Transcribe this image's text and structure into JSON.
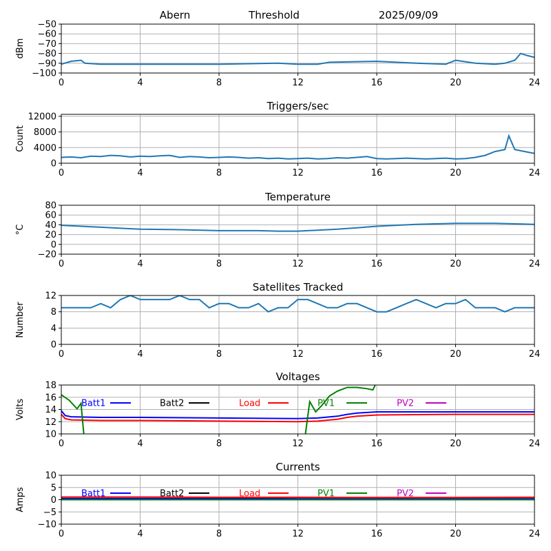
{
  "header": {
    "site": "Abern",
    "mode": "Threshold",
    "date": "2025/09/09"
  },
  "colors": {
    "default": "#1f77b4",
    "grid": "#b0b0b0",
    "batt1": "#0000ff",
    "batt2": "#000000",
    "load": "#ff0000",
    "pv1": "#008000",
    "pv2": "#bf00bf"
  },
  "x_ticks": [
    "0",
    "4",
    "8",
    "12",
    "16",
    "20",
    "24"
  ],
  "chart_data": [
    {
      "id": "signal",
      "type": "line",
      "title": "",
      "xlabel": "",
      "ylabel": "dBm",
      "xlim": [
        0,
        24
      ],
      "ylim": [
        -100,
        -50
      ],
      "grid": true,
      "yticks": [
        -100,
        -90,
        -80,
        -70,
        -60,
        -50
      ],
      "series": [
        {
          "x": [
            0,
            0.5,
            1,
            1.2,
            2,
            4,
            8,
            11,
            12,
            13,
            13.6,
            16,
            18,
            19.5,
            20,
            21,
            22,
            22.5,
            23,
            23.3,
            23.6,
            24
          ],
          "y": [
            -91,
            -88,
            -87,
            -90,
            -91,
            -91,
            -91,
            -90,
            -91,
            -91,
            -89,
            -88,
            -90,
            -91,
            -87,
            -90,
            -91,
            -90,
            -87,
            -80,
            -82,
            -84
          ]
        }
      ]
    },
    {
      "id": "triggers",
      "type": "line",
      "title": "Triggers/sec",
      "xlabel": "",
      "ylabel": "Count",
      "xlim": [
        0,
        24
      ],
      "ylim": [
        0,
        12500
      ],
      "grid": true,
      "yticks": [
        0,
        4000,
        8000,
        12000
      ],
      "series": [
        {
          "x": [
            0,
            0.5,
            1,
            1.5,
            2,
            2.5,
            3,
            3.5,
            4,
            4.5,
            5,
            5.5,
            6,
            6.5,
            7,
            7.5,
            8,
            8.5,
            9,
            9.5,
            10,
            10.5,
            11,
            11.5,
            12,
            12.5,
            13,
            13.5,
            14,
            14.5,
            15,
            15.5,
            16,
            16.5,
            17,
            17.5,
            18,
            18.5,
            19,
            19.5,
            20,
            20.5,
            21,
            21.5,
            22,
            22.5,
            22.7,
            23,
            23.5,
            24
          ],
          "y": [
            1500,
            1600,
            1400,
            1800,
            1700,
            2000,
            1900,
            1600,
            1800,
            1700,
            1900,
            2000,
            1500,
            1700,
            1600,
            1400,
            1500,
            1600,
            1500,
            1300,
            1400,
            1200,
            1300,
            1100,
            1200,
            1300,
            1100,
            1200,
            1400,
            1300,
            1500,
            1700,
            1200,
            1100,
            1200,
            1300,
            1200,
            1100,
            1200,
            1300,
            1100,
            1200,
            1500,
            2000,
            3000,
            3500,
            7000,
            3500,
            3000,
            2500
          ]
        }
      ]
    },
    {
      "id": "temperature",
      "type": "line",
      "title": "Temperature",
      "xlabel": "",
      "ylabel": "°C",
      "xlim": [
        0,
        24
      ],
      "ylim": [
        -20,
        80
      ],
      "grid": true,
      "yticks": [
        -20,
        0,
        20,
        40,
        60,
        80
      ],
      "series": [
        {
          "x": [
            0,
            1,
            2,
            3,
            4,
            6,
            8,
            10,
            11,
            12,
            12.5,
            13,
            14,
            15,
            16,
            17,
            18,
            19,
            20,
            21,
            22,
            23,
            24
          ],
          "y": [
            39,
            37,
            35,
            33,
            31,
            30,
            28,
            28,
            27,
            27,
            28,
            29,
            31,
            34,
            37,
            39,
            41,
            42,
            43,
            43,
            43,
            42,
            41
          ]
        }
      ]
    },
    {
      "id": "satellites",
      "type": "line",
      "title": "Satellites Tracked",
      "xlabel": "",
      "ylabel": "Number",
      "xlim": [
        0,
        24
      ],
      "ylim": [
        0,
        12
      ],
      "grid": true,
      "yticks": [
        0,
        4,
        8,
        12
      ],
      "series": [
        {
          "x": [
            0,
            0.5,
            1,
            1.5,
            2,
            2.5,
            3,
            3.5,
            4,
            4.5,
            5,
            5.5,
            6,
            6.5,
            7,
            7.5,
            8,
            8.5,
            9,
            9.5,
            10,
            10.5,
            11,
            11.5,
            12,
            12.5,
            13,
            13.5,
            14,
            14.5,
            15,
            15.5,
            16,
            16.5,
            17,
            17.5,
            18,
            18.5,
            19,
            19.5,
            20,
            20.5,
            21,
            21.5,
            22,
            22.5,
            23,
            23.5,
            24
          ],
          "y": [
            9,
            9,
            9,
            9,
            10,
            9,
            11,
            12,
            11,
            11,
            11,
            11,
            12,
            11,
            11,
            9,
            10,
            10,
            9,
            9,
            10,
            8,
            9,
            9,
            11,
            11,
            10,
            9,
            9,
            10,
            10,
            9,
            8,
            8,
            9,
            10,
            11,
            10,
            9,
            10,
            10,
            11,
            9,
            9,
            9,
            8,
            9,
            9,
            9
          ]
        }
      ]
    },
    {
      "id": "voltages",
      "type": "line",
      "title": "Voltages",
      "xlabel": "",
      "ylabel": "Volts",
      "xlim": [
        0,
        24
      ],
      "ylim": [
        10,
        18
      ],
      "grid": true,
      "yticks": [
        10,
        12,
        14,
        16,
        18
      ],
      "legend": "top, single row",
      "series": [
        {
          "name": "Batt1",
          "color": "batt1",
          "x": [
            0,
            0.2,
            0.5,
            2,
            4,
            8,
            12,
            13,
            14,
            14.5,
            15,
            16,
            20,
            24
          ],
          "y": [
            13.8,
            13,
            12.8,
            12.7,
            12.7,
            12.6,
            12.5,
            12.6,
            12.9,
            13.2,
            13.4,
            13.6,
            13.6,
            13.6
          ]
        },
        {
          "name": "Batt2",
          "color": "batt2",
          "x": [],
          "y": []
        },
        {
          "name": "Load",
          "color": "load",
          "x": [
            0,
            0.2,
            0.5,
            2,
            4,
            8,
            12,
            13,
            14,
            14.5,
            15,
            16,
            20,
            24
          ],
          "y": [
            13.2,
            12.5,
            12.3,
            12.2,
            12.2,
            12.1,
            12,
            12.1,
            12.4,
            12.7,
            12.9,
            13.1,
            13.2,
            13.2
          ]
        },
        {
          "name": "PV1",
          "color": "pv1",
          "x": [
            0,
            0.4,
            0.8,
            1,
            1.2,
            12.3,
            12.6,
            12.9,
            13.2,
            13.6,
            14,
            14.5,
            15,
            15.5,
            15.8,
            16
          ],
          "y": [
            16.4,
            15.5,
            14.1,
            15,
            8,
            8,
            15.3,
            13.6,
            14.6,
            16.2,
            17,
            17.6,
            17.6,
            17.4,
            17.2,
            18.5
          ]
        },
        {
          "name": "PV2",
          "color": "pv2",
          "x": [],
          "y": []
        }
      ]
    },
    {
      "id": "currents",
      "type": "line",
      "title": "Currents",
      "xlabel": "",
      "ylabel": "Amps",
      "xlim": [
        0,
        24
      ],
      "ylim": [
        -10,
        10
      ],
      "grid": true,
      "yticks": [
        -10,
        -5,
        0,
        5,
        10
      ],
      "legend": "top, single row",
      "series": [
        {
          "name": "Batt1",
          "color": "batt1",
          "x": [
            0,
            4,
            8,
            12,
            16,
            20,
            24
          ],
          "y": [
            0.5,
            0.5,
            0.5,
            0.4,
            0.4,
            0.4,
            0.4
          ]
        },
        {
          "name": "Batt2",
          "color": "batt2",
          "x": [],
          "y": []
        },
        {
          "name": "Load",
          "color": "load",
          "x": [
            0,
            4,
            8,
            12,
            16,
            20,
            24
          ],
          "y": [
            1.1,
            1.1,
            1,
            1,
            0.9,
            0.9,
            1
          ]
        },
        {
          "name": "PV1",
          "color": "pv1",
          "x": [
            0,
            4,
            8,
            12,
            16,
            20,
            24
          ],
          "y": [
            0,
            0,
            0,
            0,
            0,
            0,
            0
          ]
        },
        {
          "name": "PV2",
          "color": "pv2",
          "x": [],
          "y": []
        }
      ]
    }
  ]
}
